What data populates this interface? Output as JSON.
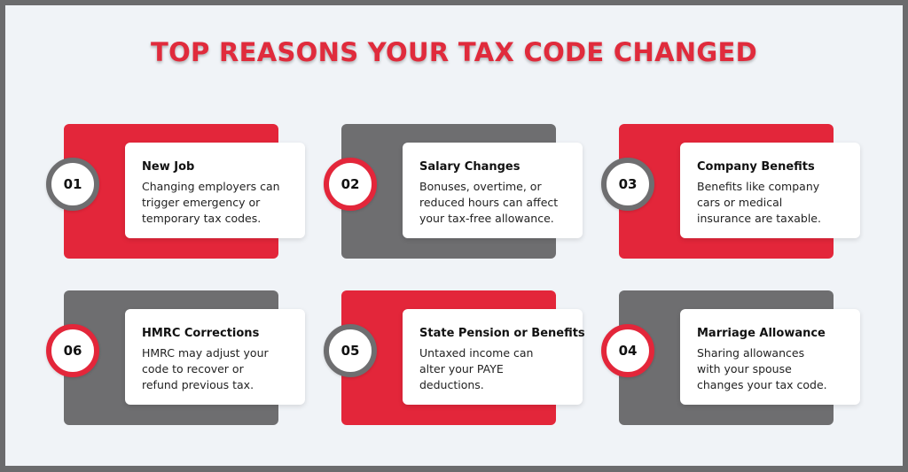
{
  "title": "TOP REASONS YOUR TAX CODE CHANGED",
  "colors": {
    "accent_red": "#e3263a",
    "gray": "#6e6e70",
    "background": "#f0f3f7"
  },
  "cards": [
    {
      "number": "01",
      "heading": "New Job",
      "lines": [
        "Changing employers can",
        "trigger emergency or",
        "temporary tax codes."
      ],
      "back_color": "red",
      "badge_color": "gray"
    },
    {
      "number": "02",
      "heading": "Salary Changes",
      "lines": [
        "Bonuses, overtime, or",
        "reduced hours can affect",
        "your tax-free allowance."
      ],
      "back_color": "gray",
      "badge_color": "red"
    },
    {
      "number": "03",
      "heading": "Company Benefits",
      "lines": [
        "Benefits like company",
        "cars or medical",
        "insurance are taxable."
      ],
      "back_color": "red",
      "badge_color": "gray"
    },
    {
      "number": "06",
      "heading": "HMRC Corrections",
      "lines": [
        "HMRC may adjust your",
        "code to recover or",
        "refund previous tax."
      ],
      "back_color": "gray",
      "badge_color": "red"
    },
    {
      "number": "05",
      "heading": "State Pension or Benefits",
      "lines": [
        "Untaxed income can",
        "alter your PAYE",
        "deductions."
      ],
      "back_color": "red",
      "badge_color": "gray"
    },
    {
      "number": "04",
      "heading": "Marriage Allowance",
      "lines": [
        "Sharing allowances",
        "with your spouse",
        "changes your tax code."
      ],
      "back_color": "gray",
      "badge_color": "red"
    }
  ]
}
